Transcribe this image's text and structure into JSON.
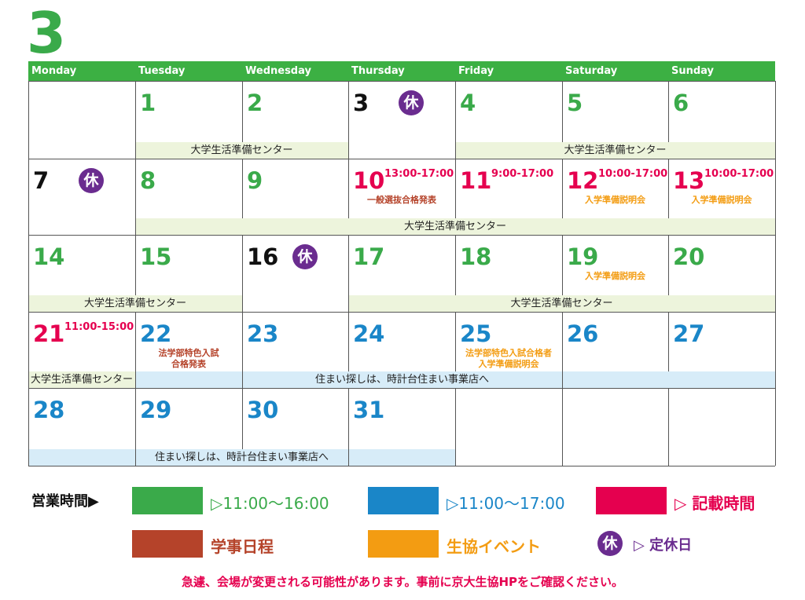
{
  "month": "3",
  "weekdays": [
    "Monday",
    "Tuesday",
    "Wednesday",
    "Thursday",
    "Friday",
    "Saturday",
    "Sunday"
  ],
  "weeks": [
    {
      "days": [
        null,
        {
          "day": 1,
          "color": "#3aaa4a"
        },
        {
          "day": 2,
          "color": "#3aaa4a"
        },
        {
          "day": 3,
          "color": "#111111",
          "closed": "休"
        },
        {
          "day": 4,
          "color": "#3aaa4a"
        },
        {
          "day": 5,
          "color": "#3aaa4a"
        },
        {
          "day": 6,
          "color": "#3aaa4a"
        }
      ],
      "bands": [
        {
          "cols": [
            1,
            2
          ],
          "text": "大学生活準備センター",
          "color": "#edf4dc"
        },
        {
          "cols": [
            4,
            6
          ],
          "text": "大学生活準備センター",
          "color": "#edf4dc"
        }
      ]
    },
    {
      "days": [
        {
          "day": 7,
          "color": "#111111",
          "closed": "休"
        },
        {
          "day": 8,
          "color": "#3aaa4a"
        },
        {
          "day": 9,
          "color": "#3aaa4a"
        },
        {
          "day": 10,
          "color": "#e5004f",
          "time": "13:00-17:00",
          "note": "一般選抜合格発表",
          "note_color": "#b5432a"
        },
        {
          "day": 11,
          "color": "#e5004f",
          "time": "9:00-17:00"
        },
        {
          "day": 12,
          "color": "#e5004f",
          "time": "10:00-17:00",
          "note": "入学準備説明会",
          "note_color": "#f39c12"
        },
        {
          "day": 13,
          "color": "#e5004f",
          "time": "10:00-17:00",
          "note": "入学準備説明会",
          "note_color": "#f39c12"
        }
      ],
      "bands": [
        {
          "cols": [
            1,
            6
          ],
          "text": "大学生活準備センター",
          "color": "#edf4dc"
        }
      ]
    },
    {
      "days": [
        {
          "day": 14,
          "color": "#3aaa4a"
        },
        {
          "day": 15,
          "color": "#3aaa4a"
        },
        {
          "day": 16,
          "color": "#111111",
          "closed": "休"
        },
        {
          "day": 17,
          "color": "#3aaa4a"
        },
        {
          "day": 18,
          "color": "#3aaa4a"
        },
        {
          "day": 19,
          "color": "#3aaa4a",
          "note": "入学準備説明会",
          "note_color": "#f39c12"
        },
        {
          "day": 20,
          "color": "#3aaa4a"
        }
      ],
      "bands": [
        {
          "cols": [
            0,
            1
          ],
          "text": "大学生活準備センター",
          "color": "#edf4dc"
        },
        {
          "cols": [
            3,
            6
          ],
          "text": "大学生活準備センター",
          "color": "#edf4dc"
        }
      ]
    },
    {
      "days": [
        {
          "day": 21,
          "color": "#e5004f",
          "time": "11:00-15:00"
        },
        {
          "day": 22,
          "color": "#1a86c8",
          "note": "法学部特色入試\n合格発表",
          "note_color": "#b5432a"
        },
        {
          "day": 23,
          "color": "#1a86c8"
        },
        {
          "day": 24,
          "color": "#1a86c8"
        },
        {
          "day": 25,
          "color": "#1a86c8",
          "note": "法学部特色入試合格者\n入学準備説明会",
          "note_color": "#f39c12"
        },
        {
          "day": 26,
          "color": "#1a86c8"
        },
        {
          "day": 27,
          "color": "#1a86c8"
        }
      ],
      "bands": [
        {
          "cols": [
            0,
            0
          ],
          "text": "大学生活準備センター",
          "color": "#edf4dc"
        },
        {
          "cols": [
            1,
            1
          ],
          "color": "#d7ecf8"
        },
        {
          "cols": [
            2,
            4
          ],
          "text": "住まい探しは、時計台住まい事業店へ",
          "color": "#d7ecf8"
        },
        {
          "cols": [
            5,
            6
          ],
          "color": "#d7ecf8"
        }
      ]
    },
    {
      "days": [
        {
          "day": 28,
          "color": "#1a86c8"
        },
        {
          "day": 29,
          "color": "#1a86c8"
        },
        {
          "day": 30,
          "color": "#1a86c8"
        },
        {
          "day": 31,
          "color": "#1a86c8"
        },
        null,
        null,
        null
      ],
      "bands": [
        {
          "cols": [
            0,
            0
          ],
          "color": "#d7ecf8"
        },
        {
          "cols": [
            1,
            2
          ],
          "text": "住まい探しは、時計台住まい事業店へ",
          "color": "#d7ecf8"
        },
        {
          "cols": [
            3,
            3
          ],
          "color": "#d7ecf8"
        }
      ]
    }
  ],
  "legend": {
    "label": "営業時間▶",
    "items": [
      {
        "text": "▷11:00〜16:00",
        "color": "#3aaa4a"
      },
      {
        "text": "▷11:00〜17:00",
        "color": "#1a86c8"
      },
      {
        "text": "▷ 記載時間",
        "color": "#e5004f"
      },
      {
        "text": "学事日程",
        "color": "#b5432a"
      },
      {
        "text": "生協イベント",
        "color": "#f39c12"
      }
    ],
    "closed": {
      "mark": "休",
      "text": "▷ 定休日",
      "color": "#6a2c8f"
    }
  },
  "footer": "急遽、会場が変更される可能性があります。事前に京大生協HPをご確認ください。"
}
